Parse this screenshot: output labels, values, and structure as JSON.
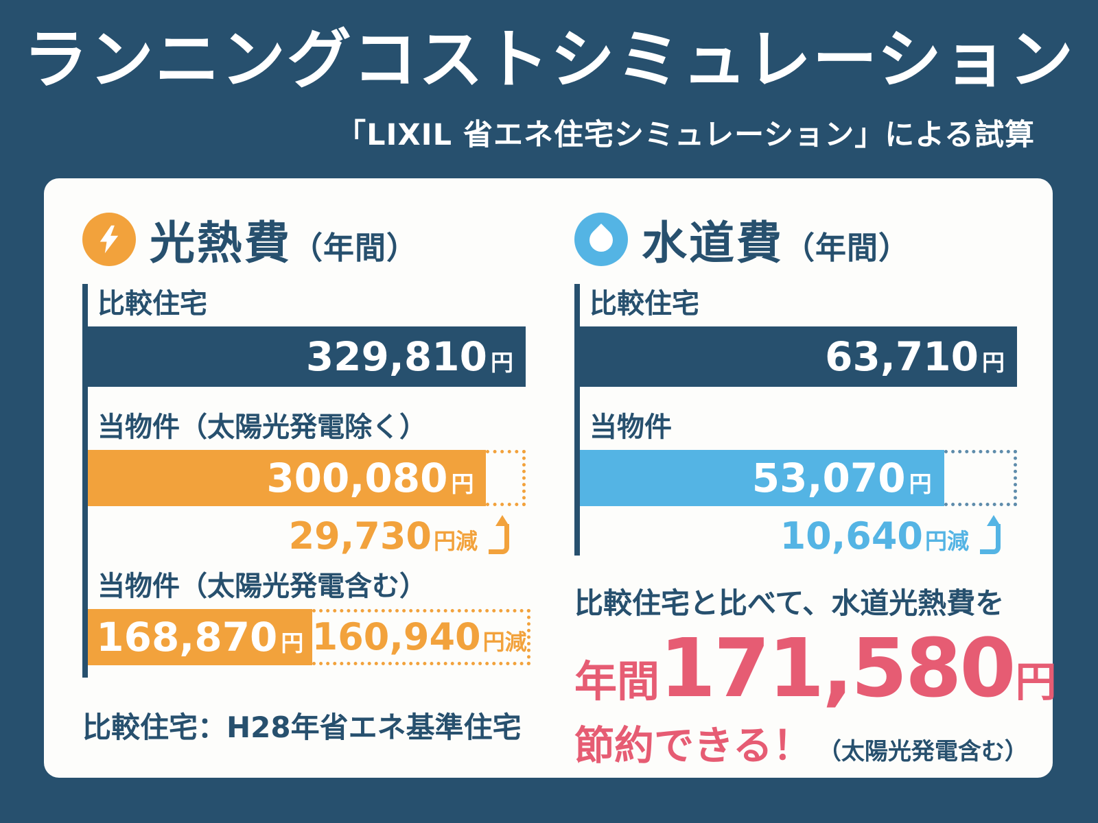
{
  "colors": {
    "navy": "#27506e",
    "orange": "#f2a23c",
    "lightblue": "#54b4e4",
    "pink": "#e65c73",
    "card": "#fdfdfb",
    "dotted_blue": "#5e8cab"
  },
  "header": {
    "title": "ランニングコストシミュレーション",
    "subtitle": "「LIXIL 省エネ住宅シミュレーション」による試算"
  },
  "energy": {
    "icon": "lightning-icon",
    "title": "光熱費",
    "title_suffix": "（年間）",
    "max": 329810,
    "rows": [
      {
        "label": "比較住宅",
        "value": "329,810",
        "unit": "円",
        "value_num": 329810
      },
      {
        "label": "当物件（太陽光発電除く）",
        "value": "300,080",
        "unit": "円",
        "value_num": 300080,
        "saving_value": "29,730",
        "saving_unit": "円減"
      },
      {
        "label": "当物件（太陽光発電含む）",
        "value": "168,870",
        "unit": "円",
        "value_num": 168870,
        "saving_value": "160,940",
        "saving_unit": "円減"
      }
    ],
    "footnote": "比較住宅：H28年省エネ基準住宅"
  },
  "water": {
    "icon": "water-drop-icon",
    "title": "水道費",
    "title_suffix": "（年間）",
    "max": 63710,
    "rows": [
      {
        "label": "比較住宅",
        "value": "63,710",
        "unit": "円",
        "value_num": 63710
      },
      {
        "label": "当物件",
        "value": "53,070",
        "unit": "円",
        "value_num": 53070,
        "saving_value": "10,640",
        "saving_unit": "円減"
      }
    ]
  },
  "summary": {
    "line1": "比較住宅と比べて、水道光熱費を",
    "prefix": "年間",
    "amount": "171,580",
    "unit": "円",
    "save_text": "節約できる！",
    "note": "（太陽光発電含む）"
  },
  "chart_data": [
    {
      "type": "bar",
      "orientation": "horizontal",
      "title": "光熱費（年間）",
      "categories": [
        "比較住宅",
        "当物件（太陽光発電除く）",
        "当物件（太陽光発電含む）"
      ],
      "values": [
        329810,
        300080,
        168870
      ],
      "savings_vs_comparison": [
        0,
        29730,
        160940
      ],
      "unit": "円",
      "xlim": [
        0,
        329810
      ],
      "bar_colors": [
        "#27506e",
        "#f2a23c",
        "#f2a23c"
      ],
      "note": "比較住宅：H28年省エネ基準住宅"
    },
    {
      "type": "bar",
      "orientation": "horizontal",
      "title": "水道費（年間）",
      "categories": [
        "比較住宅",
        "当物件"
      ],
      "values": [
        63710,
        53070
      ],
      "savings_vs_comparison": [
        0,
        10640
      ],
      "unit": "円",
      "xlim": [
        0,
        63710
      ],
      "bar_colors": [
        "#27506e",
        "#54b4e4"
      ]
    }
  ]
}
